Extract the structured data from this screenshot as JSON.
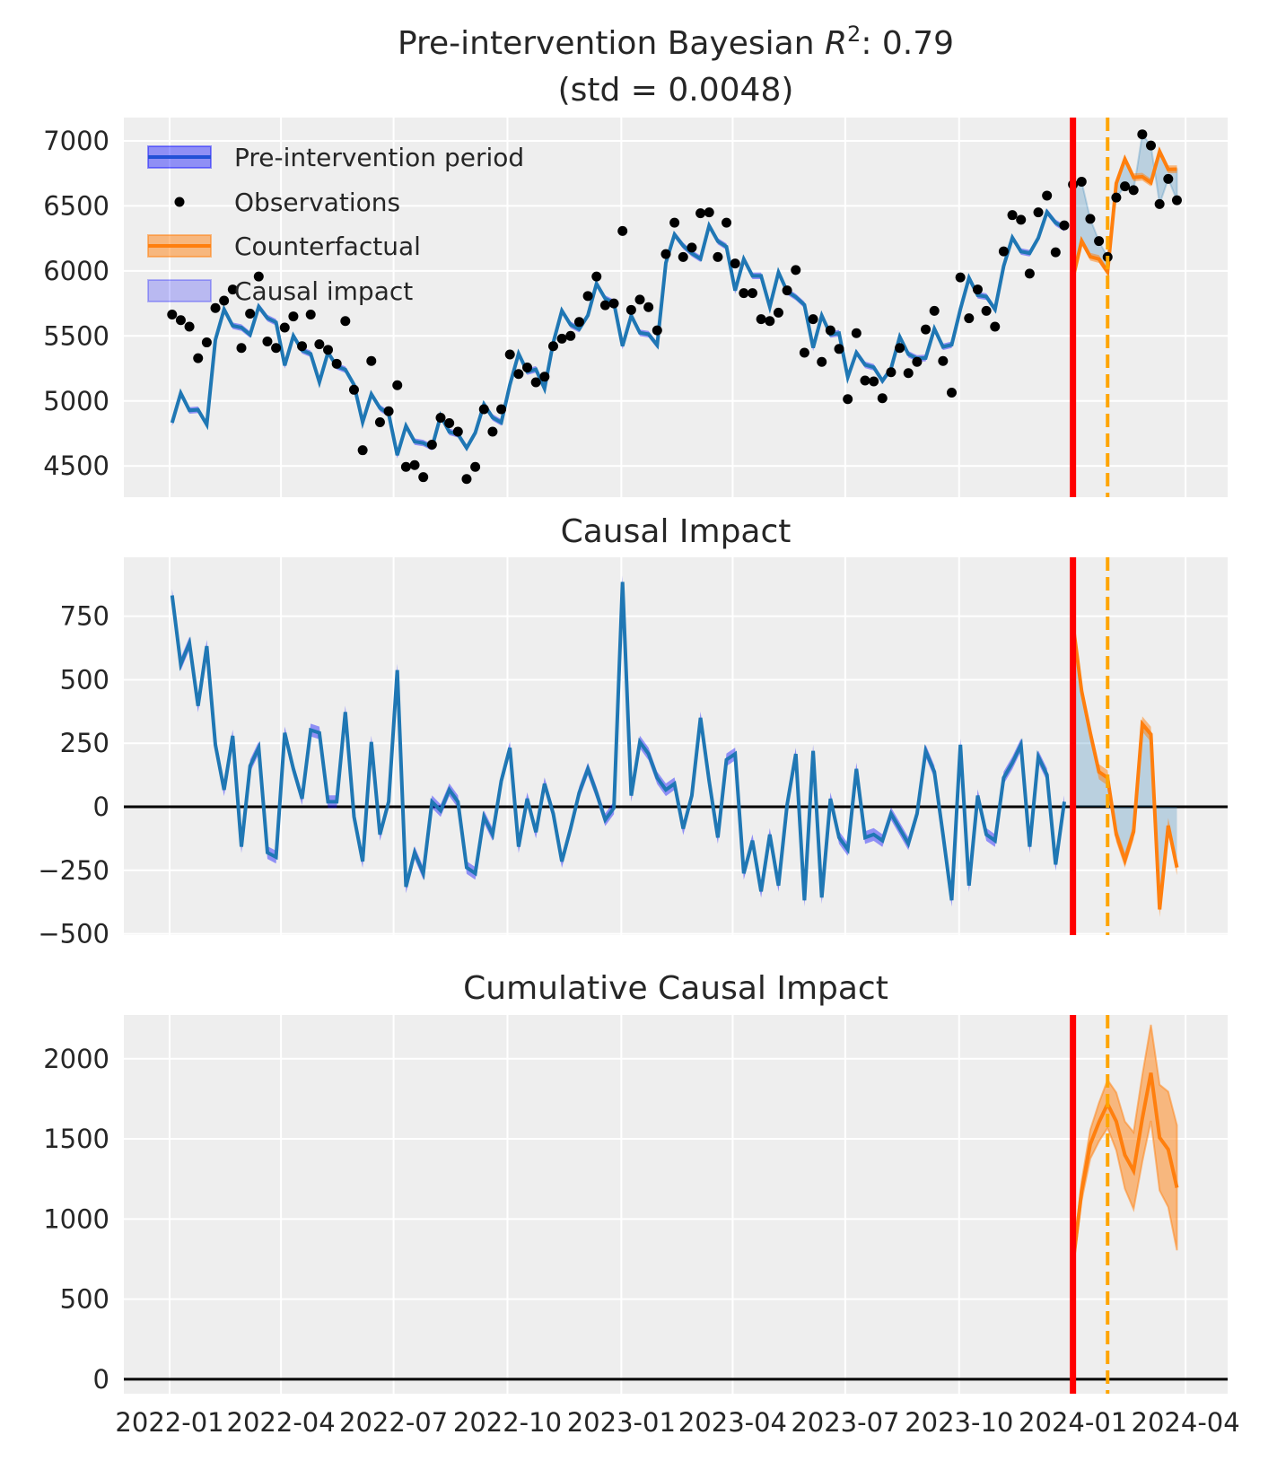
{
  "chart_data": [
    {
      "type": "line",
      "title_line1_prefix": "Pre-intervention Bayesian ",
      "title_r": "R",
      "title_sup": "2",
      "title_line1_suffix": ": 0.79",
      "title_line2": "(std = 0.0048)",
      "ylim": [
        4260,
        7179
      ],
      "yticks": [
        4500,
        5000,
        5500,
        6000,
        6500,
        7000
      ],
      "legend": {
        "placement": "top-left",
        "entries": [
          "Pre-intervention period",
          "Observations",
          "Counterfactual",
          "Causal impact"
        ]
      },
      "series": [
        "observations",
        "pre-intervention fit",
        "counterfactual",
        "causal impact fill"
      ]
    },
    {
      "type": "line",
      "title": "Causal Impact",
      "ylim": [
        -505,
        982
      ],
      "yticks": [
        -500,
        -250,
        0,
        250,
        500,
        750
      ]
    },
    {
      "type": "line",
      "title": "Cumulative Causal Impact",
      "ylim": [
        -90,
        2273
      ],
      "yticks": [
        0,
        500,
        1000,
        1500,
        2000
      ]
    }
  ],
  "shared": {
    "xlim": [
      "2021-11-25",
      "2024-05-05"
    ],
    "xticks": [
      "2022-01",
      "2022-04",
      "2022-07",
      "2022-10",
      "2023-01",
      "2023-04",
      "2023-07",
      "2023-10",
      "2024-01",
      "2024-04"
    ],
    "grid": true,
    "treatment_time": "2024-01-01",
    "secondary_marker_time": "2024-01-29",
    "n_pre": 104,
    "interval_halfwidth": {
      "pre": 25,
      "post": 30
    },
    "dates": [
      "2022-01-03",
      "2022-01-10",
      "2022-01-17",
      "2022-01-24",
      "2022-01-31",
      "2022-02-07",
      "2022-02-14",
      "2022-02-21",
      "2022-02-28",
      "2022-03-07",
      "2022-03-14",
      "2022-03-21",
      "2022-03-28",
      "2022-04-04",
      "2022-04-11",
      "2022-04-18",
      "2022-04-25",
      "2022-05-02",
      "2022-05-09",
      "2022-05-16",
      "2022-05-23",
      "2022-05-30",
      "2022-06-06",
      "2022-06-13",
      "2022-06-20",
      "2022-06-27",
      "2022-07-04",
      "2022-07-11",
      "2022-07-18",
      "2022-07-25",
      "2022-08-01",
      "2022-08-08",
      "2022-08-15",
      "2022-08-22",
      "2022-08-29",
      "2022-09-05",
      "2022-09-12",
      "2022-09-19",
      "2022-09-26",
      "2022-10-03",
      "2022-10-10",
      "2022-10-17",
      "2022-10-24",
      "2022-10-31",
      "2022-11-07",
      "2022-11-14",
      "2022-11-21",
      "2022-11-28",
      "2022-12-05",
      "2022-12-12",
      "2022-12-19",
      "2022-12-26",
      "2023-01-02",
      "2023-01-09",
      "2023-01-16",
      "2023-01-23",
      "2023-01-30",
      "2023-02-06",
      "2023-02-13",
      "2023-02-20",
      "2023-02-27",
      "2023-03-06",
      "2023-03-13",
      "2023-03-20",
      "2023-03-27",
      "2023-04-03",
      "2023-04-10",
      "2023-04-17",
      "2023-04-24",
      "2023-05-01",
      "2023-05-08",
      "2023-05-15",
      "2023-05-22",
      "2023-05-29",
      "2023-06-05",
      "2023-06-12",
      "2023-06-19",
      "2023-06-26",
      "2023-07-03",
      "2023-07-10",
      "2023-07-17",
      "2023-07-24",
      "2023-07-31",
      "2023-08-07",
      "2023-08-14",
      "2023-08-21",
      "2023-08-28",
      "2023-09-04",
      "2023-09-11",
      "2023-09-18",
      "2023-09-25",
      "2023-10-02",
      "2023-10-09",
      "2023-10-16",
      "2023-10-23",
      "2023-10-30",
      "2023-11-06",
      "2023-11-13",
      "2023-11-20",
      "2023-11-27",
      "2023-12-04",
      "2023-12-11",
      "2023-12-18",
      "2023-12-25",
      "2024-01-01",
      "2024-01-08",
      "2024-01-15",
      "2024-01-22",
      "2024-01-29",
      "2024-02-05",
      "2024-02-12",
      "2024-02-19",
      "2024-02-26",
      "2024-03-04",
      "2024-03-11",
      "2024-03-18",
      "2024-03-25"
    ],
    "observations": [
      5664,
      5621,
      5571,
      5329,
      5450,
      5714,
      5771,
      5857,
      5407,
      5671,
      5957,
      5457,
      5407,
      5564,
      5650,
      5421,
      5664,
      5436,
      5393,
      5286,
      5614,
      5086,
      4621,
      5307,
      4836,
      4921,
      5121,
      4493,
      4507,
      4414,
      4664,
      4871,
      4829,
      4764,
      4400,
      4493,
      4936,
      4764,
      4936,
      5357,
      5207,
      5257,
      5143,
      5186,
      5421,
      5479,
      5500,
      5607,
      5807,
      5957,
      5736,
      5750,
      6307,
      5700,
      5779,
      5721,
      5543,
      6129,
      6371,
      6107,
      6179,
      6443,
      6450,
      6107,
      6371,
      6057,
      5829,
      5829,
      5629,
      5614,
      5679,
      5850,
      6007,
      5371,
      5629,
      5300,
      5543,
      5400,
      5014,
      5521,
      5157,
      5150,
      5021,
      5221,
      5407,
      5214,
      5300,
      5550,
      5693,
      5307,
      5064,
      5950,
      5636,
      5857,
      5693,
      5571,
      6150,
      6429,
      6393,
      5979,
      6450,
      6579,
      6143,
      6350,
      6664,
      6686,
      6400,
      6229,
      6107,
      6564,
      6650,
      6621,
      7050,
      6964,
      6514,
      6707,
      6543
    ],
    "causal_impact": [
      832,
      561,
      644,
      397,
      632,
      244,
      67,
      279,
      -157,
      161,
      232,
      -180,
      -198,
      291,
      149,
      32,
      302,
      291,
      20,
      20,
      373,
      -39,
      -215,
      255,
      -109,
      20,
      538,
      -315,
      -180,
      -262,
      20,
      -15,
      67,
      20,
      -239,
      -262,
      -39,
      -109,
      102,
      232,
      -157,
      32,
      -100,
      91,
      -27,
      -215,
      -86,
      55,
      149,
      55,
      -51,
      -4,
      885,
      44,
      255,
      208,
      114,
      67,
      91,
      -86,
      44,
      350,
      102,
      -121,
      185,
      208,
      -262,
      -133,
      -333,
      -109,
      -310,
      8,
      208,
      -368,
      220,
      -357,
      32,
      -121,
      -168,
      149,
      -121,
      -109,
      -133,
      -27,
      -86,
      -145,
      -27,
      220,
      138,
      -109,
      -368,
      244,
      -310,
      44,
      -109,
      -133,
      114,
      173,
      244,
      -157,
      197,
      126,
      -227,
      20,
      720,
      455,
      291,
      138,
      114,
      -109,
      -210,
      -98,
      326,
      285,
      -404,
      -74,
      -239
    ]
  },
  "colors": {
    "background": "#eeeeee",
    "grid": "#ffffff",
    "fit": "#1f77b4",
    "fit_band": "#0000ff",
    "counterfactual": "#ff7f0e",
    "impact_fill": "#1f77b4",
    "treatment_line": "#ff0000",
    "secondary_line": "#ffa500",
    "zero_line": "#000000",
    "observations": "#000000"
  }
}
